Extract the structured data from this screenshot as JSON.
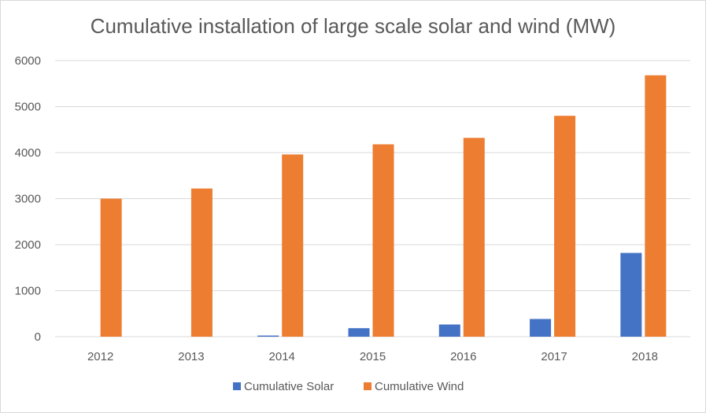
{
  "chart_data": {
    "type": "bar",
    "title": "Cumulative installation of large scale solar and wind (MW)",
    "categories": [
      "2012",
      "2013",
      "2014",
      "2015",
      "2016",
      "2017",
      "2018"
    ],
    "series": [
      {
        "name": "Cumulative Solar",
        "color": "#4472c4",
        "values": [
          0,
          0,
          25,
          185,
          265,
          385,
          1820
        ]
      },
      {
        "name": "Cumulative Wind",
        "color": "#ed7d31",
        "values": [
          3000,
          3220,
          3960,
          4180,
          4320,
          4800,
          5680
        ]
      }
    ],
    "ylim": [
      0,
      6000
    ],
    "yticks": [
      "0",
      "1000",
      "2000",
      "3000",
      "4000",
      "5000",
      "6000"
    ],
    "grid": true,
    "legend": "bottom"
  }
}
